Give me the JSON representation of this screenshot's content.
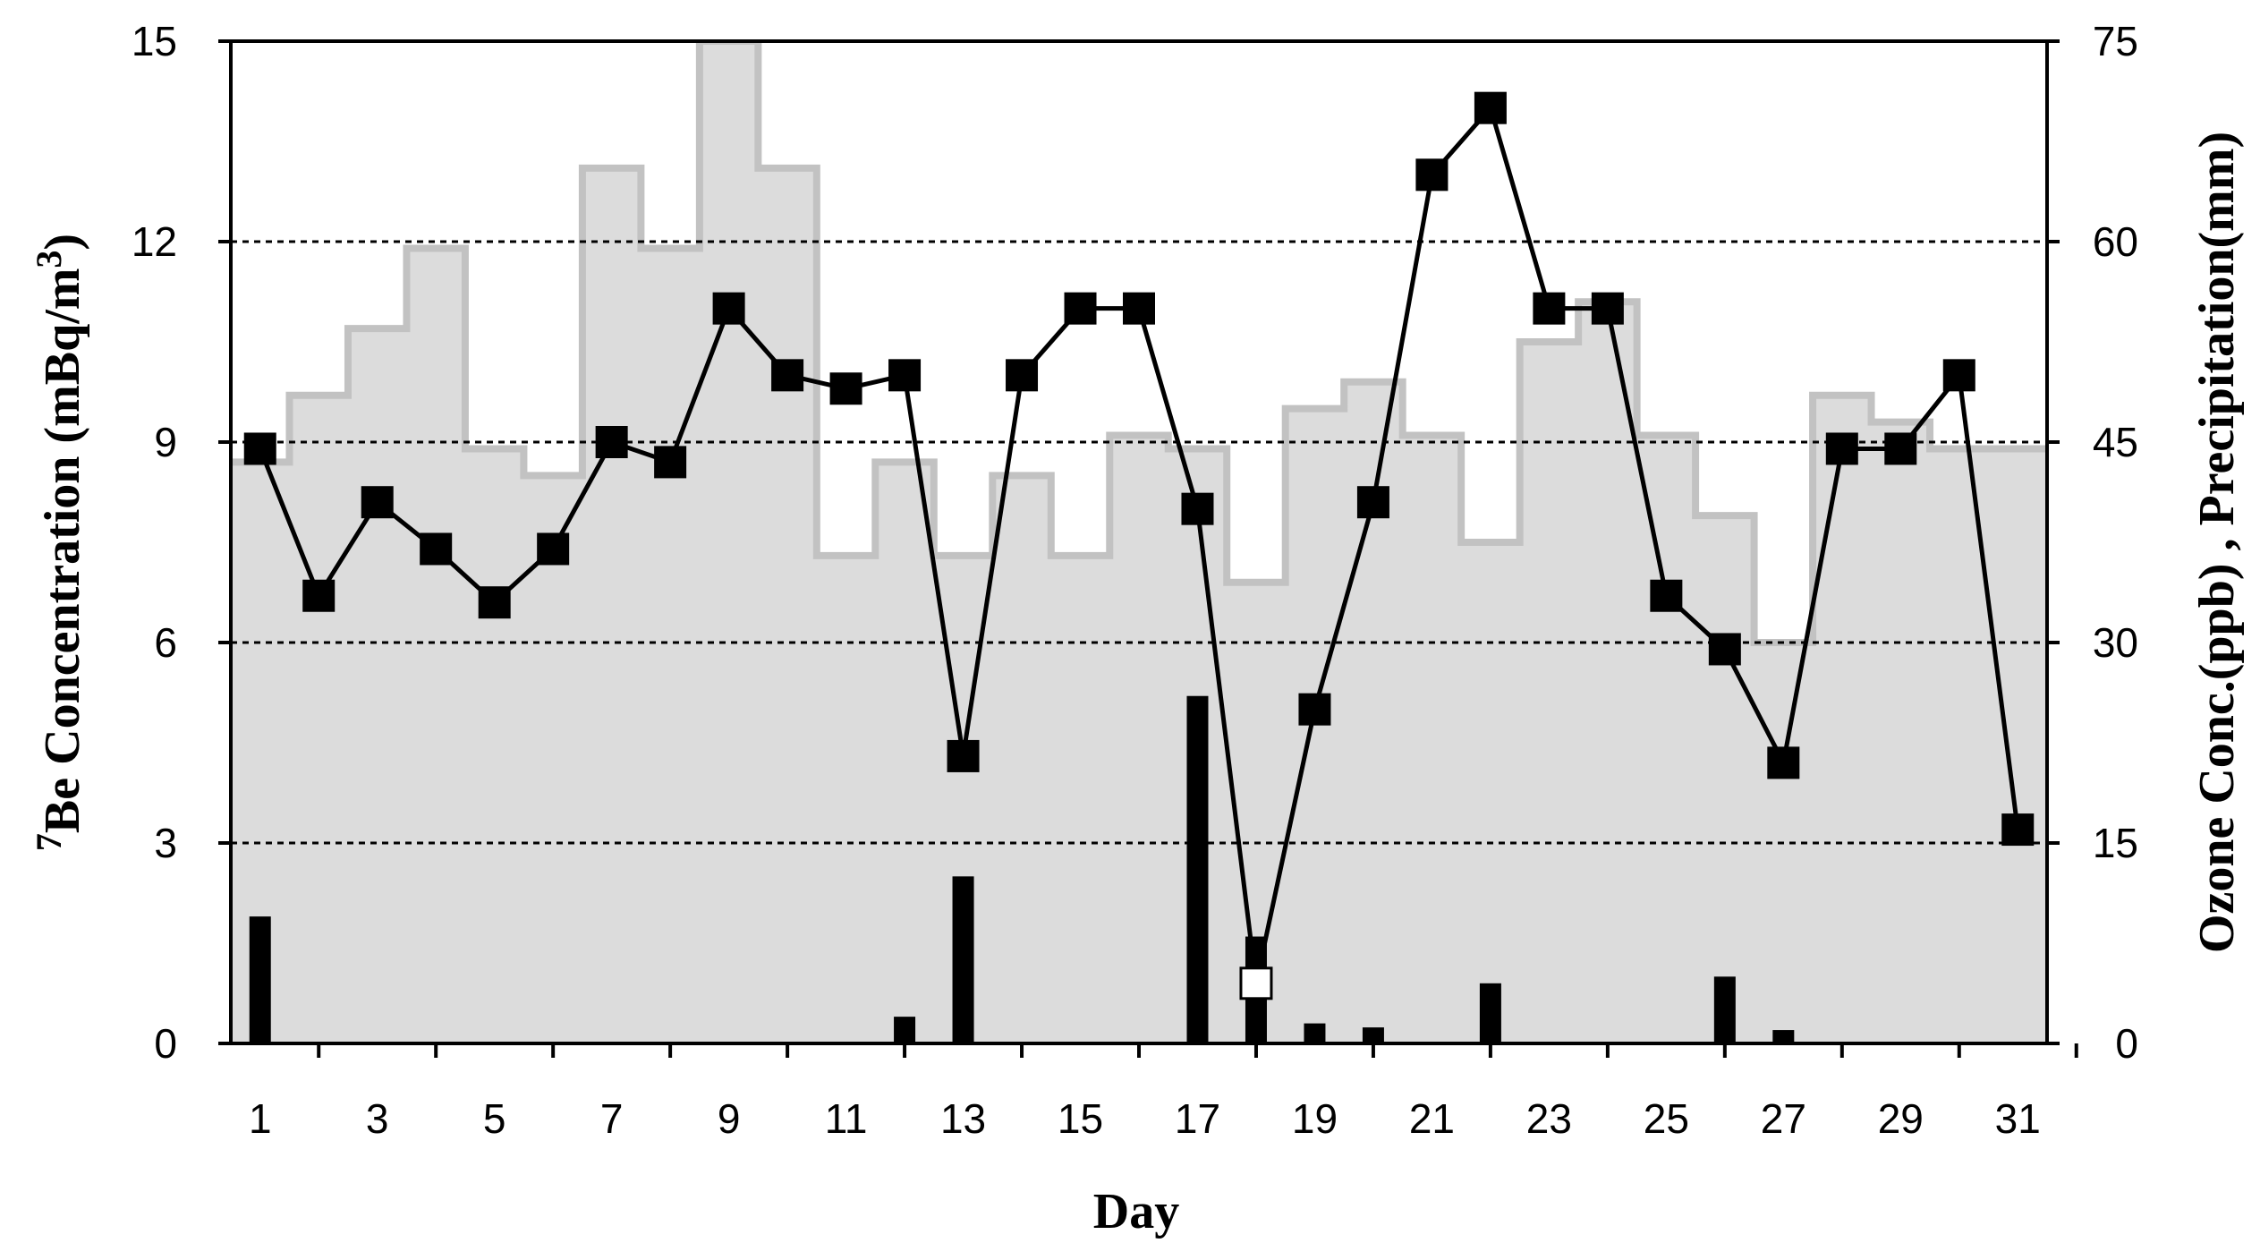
{
  "chart_data": {
    "type": "line",
    "xlabel": "Day",
    "ylabel_left": {
      "superscript": "7",
      "text": "Be Concentration (mBq/m",
      "unit_superscript": "3",
      "close": ")"
    },
    "ylabel_right": "Ozone Conc.(ppb) , Precipitation(mm)",
    "x_ticks": [
      "1",
      "3",
      "5",
      "7",
      "9",
      "11",
      "13",
      "15",
      "17",
      "19",
      "21",
      "23",
      "25",
      "27",
      "29",
      "31"
    ],
    "y_left_ticks": [
      "0",
      "3",
      "6",
      "9",
      "12",
      "15"
    ],
    "y_right_ticks": [
      "0",
      "15",
      "30",
      "45",
      "60",
      "75"
    ],
    "xlim": [
      0.5,
      31.5
    ],
    "ylim_left": [
      0,
      15
    ],
    "ylim_right": [
      0,
      75
    ],
    "grid": "dotted horizontal at 3, 6, 9, 12",
    "series": [
      {
        "type": "line",
        "axis": "left",
        "marker": "filled-square",
        "x": [
          1,
          2,
          3,
          4,
          5,
          6,
          7,
          8,
          9,
          10,
          11,
          12,
          13,
          14,
          15,
          16,
          17,
          18,
          19,
          20,
          21,
          22,
          23,
          24,
          25,
          26,
          27,
          28,
          29,
          30,
          31
        ],
        "values": [
          8.9,
          6.7,
          8.1,
          7.4,
          6.6,
          7.4,
          9.0,
          8.7,
          11.0,
          10.0,
          9.8,
          10.0,
          4.3,
          10.0,
          11.0,
          11.0,
          8.0,
          0.9,
          5.0,
          8.1,
          13.0,
          14.0,
          11.0,
          11.0,
          6.7,
          5.9,
          4.2,
          8.9,
          8.9,
          10.0,
          3.2
        ],
        "open_marker_days": [
          18
        ]
      },
      {
        "type": "step-area",
        "axis": "right",
        "color": "#dcdcdc",
        "edge_color": "#c2c2c2",
        "x": [
          1,
          2,
          3,
          4,
          5,
          6,
          7,
          8,
          9,
          10,
          11,
          12,
          13,
          14,
          15,
          16,
          17,
          18,
          19,
          20,
          21,
          22,
          23,
          24,
          25,
          26,
          27,
          28,
          29,
          30,
          31
        ],
        "values": [
          43.5,
          48.5,
          53.5,
          59.5,
          44.5,
          42.5,
          65.5,
          59.5,
          75,
          65.5,
          36.5,
          43.5,
          36.5,
          42.5,
          36.5,
          45.5,
          44.5,
          34.5,
          47.5,
          49.5,
          45.5,
          37.5,
          52.5,
          55.5,
          45.5,
          39.5,
          30,
          48.5,
          46.5,
          44.5,
          44.5
        ]
      },
      {
        "type": "bar",
        "axis": "right",
        "color": "#000000",
        "x": [
          1,
          12,
          13,
          17,
          18,
          19,
          20,
          22,
          26,
          27
        ],
        "values": [
          9.5,
          2.0,
          12.5,
          26.0,
          8.0,
          1.5,
          1.2,
          4.5,
          5.0,
          1.0
        ]
      }
    ]
  }
}
